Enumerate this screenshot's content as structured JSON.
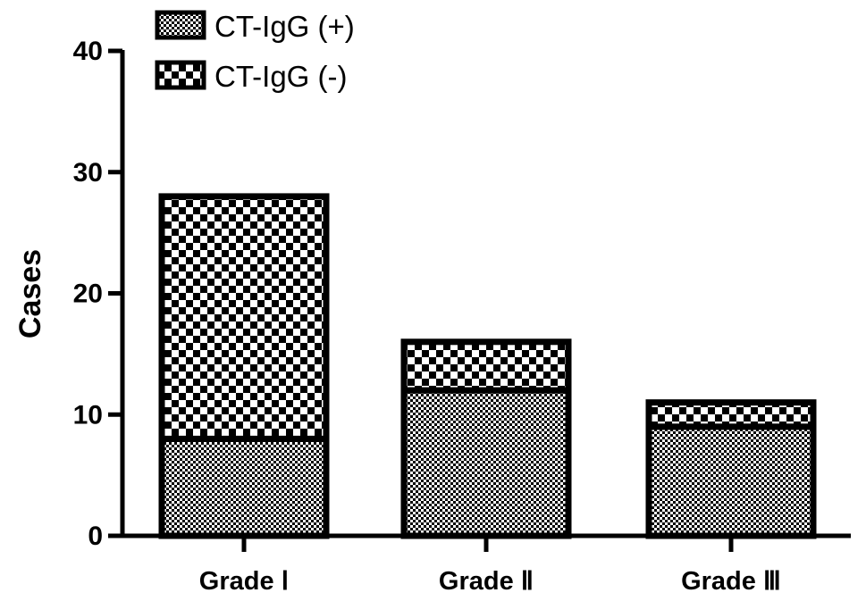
{
  "chart_data": {
    "type": "bar",
    "stacked": true,
    "categories": [
      "Grade Ⅰ",
      "Grade Ⅱ",
      "Grade Ⅲ"
    ],
    "series": [
      {
        "name": "CT-IgG (+)",
        "values": [
          8,
          12,
          9
        ],
        "pattern": "fine-checker"
      },
      {
        "name": "CT-IgG (-)",
        "values": [
          20,
          4,
          2
        ],
        "pattern": "coarse-checker"
      }
    ],
    "title": "",
    "xlabel": "",
    "ylabel": "Cases",
    "ylim": [
      0,
      40
    ],
    "yticks": [
      0,
      10,
      20,
      30,
      40
    ],
    "grid": false,
    "legend_position": "top-left",
    "colors": {
      "ink": "#000000",
      "background": "#ffffff"
    }
  }
}
